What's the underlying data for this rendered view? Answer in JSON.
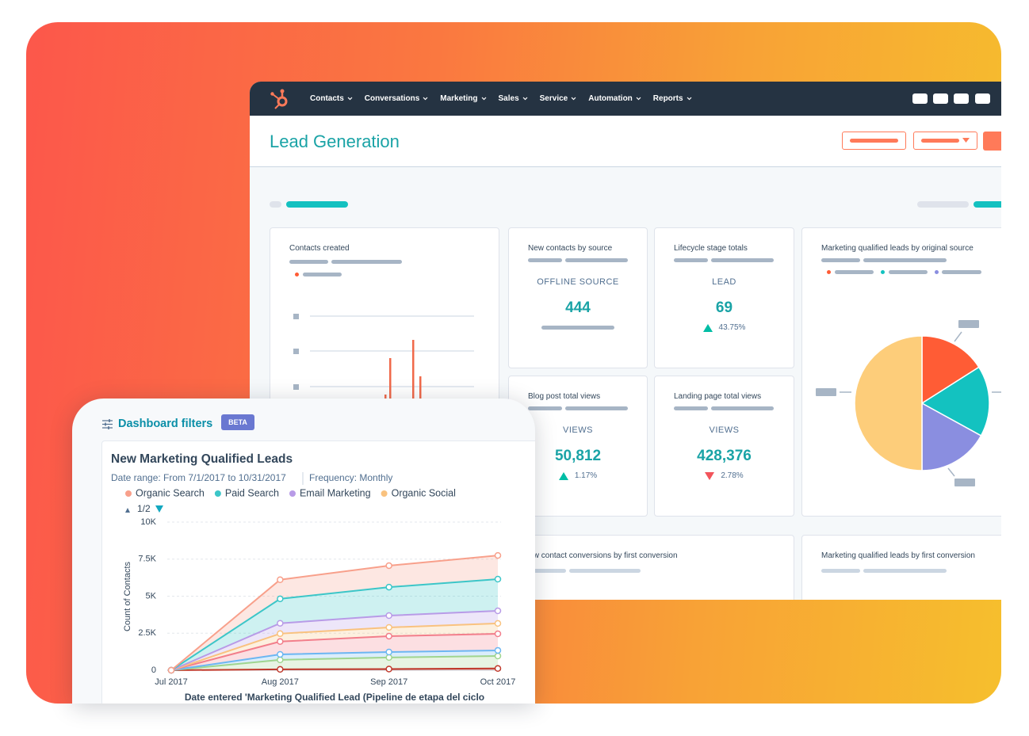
{
  "nav": {
    "items": [
      "Contacts",
      "Conversations",
      "Marketing",
      "Sales",
      "Service",
      "Automation",
      "Reports"
    ]
  },
  "header": {
    "title": "Lead Generation"
  },
  "cards": [
    {
      "title": "Contacts created"
    },
    {
      "title": "New contacts by source",
      "label": "OFFLINE SOURCE",
      "value": "444"
    },
    {
      "title": "Lifecycle stage totals",
      "label": "LEAD",
      "value": "69",
      "change": "43.75%",
      "direction": "up"
    },
    {
      "title": "Marketing qualified leads by original source"
    },
    {
      "title": "Blog post total views",
      "label": "VIEWS",
      "value": "50,812",
      "change": "1.17%",
      "direction": "up"
    },
    {
      "title": "Landing page total views",
      "label": "VIEWS",
      "value": "428,376",
      "change": "2.78%",
      "direction": "down"
    },
    {
      "title": "New contact conversions by first conversion"
    },
    {
      "title": "Marketing qualified leads by first conversion"
    }
  ],
  "filters": {
    "title": "Dashboard filters",
    "badge": "BETA"
  },
  "chart_data": [
    {
      "type": "area",
      "stacked": true,
      "title": "New Marketing Qualified Leads",
      "date_range": "Date range: From 7/1/2017 to 10/31/2017",
      "frequency": "Frequency: Monthly",
      "legend_page": "1/2",
      "y_label": "Count of Contacts",
      "x_label": "Date entered 'Marketing Qualified Lead (Pipeline de etapa del ciclo",
      "categories": [
        "Jul 2017",
        "Aug 2017",
        "Sep 2017",
        "Oct 2017"
      ],
      "series": [
        {
          "name": "Organic Search",
          "color": "#f8a08b",
          "values": [
            0,
            1290,
            1450,
            1600
          ]
        },
        {
          "name": "Paid Search",
          "color": "#3cc6c8",
          "values": [
            0,
            1650,
            1920,
            2140
          ]
        },
        {
          "name": "Email Marketing",
          "color": "#b89be7",
          "values": [
            0,
            700,
            800,
            850
          ]
        },
        {
          "name": "Organic Social",
          "color": "#f9c27f",
          "values": [
            0,
            530,
            590,
            700
          ]
        },
        {
          "color": "#f27e8b",
          "values": [
            0,
            870,
            1070,
            1120
          ]
        },
        {
          "color": "#6cb6f2",
          "values": [
            0,
            370,
            370,
            380
          ]
        },
        {
          "color": "#9fd58f",
          "values": [
            0,
            640,
            780,
            840
          ]
        },
        {
          "color": "#c0392b",
          "values": [
            0,
            60,
            80,
            120
          ]
        }
      ],
      "ylim": [
        0,
        10000
      ],
      "yticks": [
        0,
        {
          "value": 2500,
          "label": "2.5K"
        },
        {
          "value": 5000,
          "label": "5K"
        },
        {
          "value": 7500,
          "label": "7.5K"
        },
        {
          "value": 10000,
          "label": "10K"
        }
      ],
      "grid": true
    },
    {
      "type": "pie",
      "values": [
        16,
        17,
        17,
        50
      ],
      "colors": [
        "#ff5c35",
        "#13c2c0",
        "#8a8ee0",
        "#fdcd7a"
      ]
    }
  ]
}
